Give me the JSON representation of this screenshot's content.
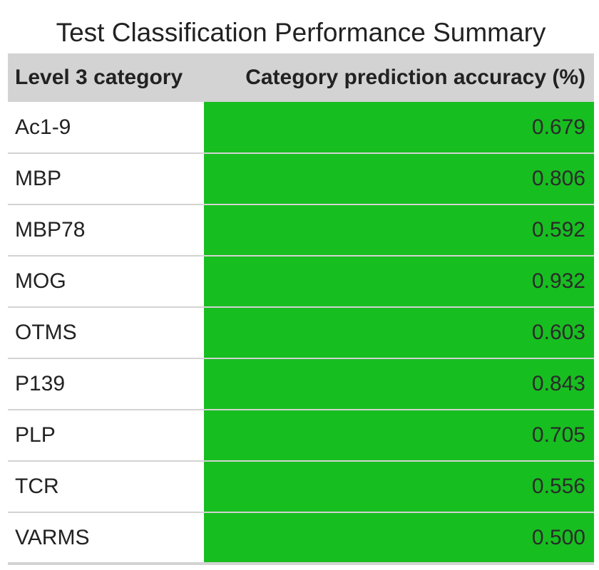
{
  "chart_data": {
    "type": "table",
    "title": "Test Classification Performance Summary",
    "columns": [
      "Level 3 category",
      "Category prediction accuracy (%)"
    ],
    "rows": [
      {
        "category": "Ac1-9",
        "accuracy": "0.679"
      },
      {
        "category": "MBP",
        "accuracy": "0.806"
      },
      {
        "category": "MBP78",
        "accuracy": "0.592"
      },
      {
        "category": "MOG",
        "accuracy": "0.932"
      },
      {
        "category": "OTMS",
        "accuracy": "0.603"
      },
      {
        "category": "P139",
        "accuracy": "0.843"
      },
      {
        "category": "PLP",
        "accuracy": "0.705"
      },
      {
        "category": "TCR",
        "accuracy": "0.556"
      },
      {
        "category": "VARMS",
        "accuracy": "0.500"
      }
    ]
  },
  "colors": {
    "header_bg": "#d3d3d3",
    "accuracy_cell_bg": "#17be20",
    "row_divider": "#d3d3d3"
  }
}
